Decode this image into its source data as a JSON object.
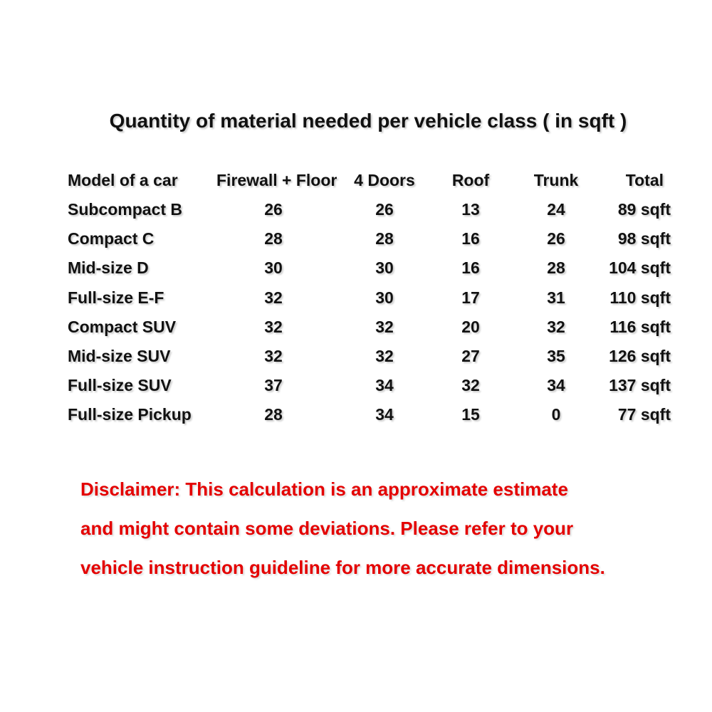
{
  "title": "Quantity of material needed per vehicle class ( in sqft )",
  "table": {
    "headers": [
      "Model of a car",
      "Firewall + Floor",
      "4 Doors",
      "Roof",
      "Trunk",
      "Total"
    ],
    "rows": [
      [
        "Subcompact B",
        "26",
        "26",
        "13",
        "24",
        "89 sqft"
      ],
      [
        "Compact C",
        "28",
        "28",
        "16",
        "26",
        "98 sqft"
      ],
      [
        "Mid-size D",
        "30",
        "30",
        "16",
        "28",
        "104 sqft"
      ],
      [
        "Full-size E-F",
        "32",
        "30",
        "17",
        "31",
        "110 sqft"
      ],
      [
        "Compact SUV",
        "32",
        "32",
        "20",
        "32",
        "116 sqft"
      ],
      [
        "Mid-size SUV",
        "32",
        "32",
        "27",
        "35",
        "126 sqft"
      ],
      [
        "Full-size SUV",
        "37",
        "34",
        "32",
        "34",
        "137 sqft"
      ],
      [
        "Full-size Pickup",
        "28",
        "34",
        "15",
        "0",
        "77 sqft"
      ]
    ]
  },
  "disclaimer": {
    "lines": [
      "Disclaimer: This calculation is an approximate estimate",
      "and might contain some deviations. Please refer to your",
      "vehicle instruction guideline for more accurate dimensions."
    ],
    "color": "#e40000"
  }
}
